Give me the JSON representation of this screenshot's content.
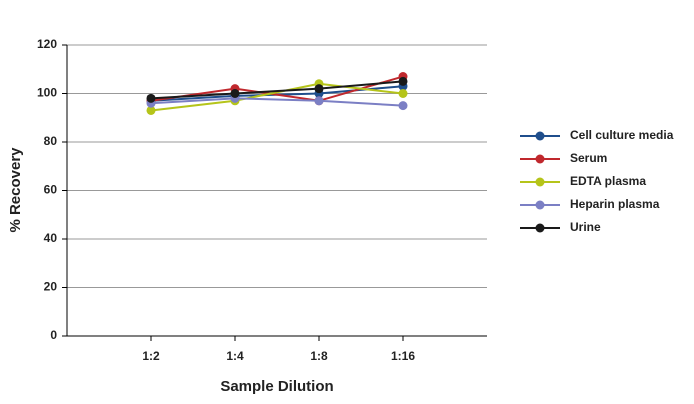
{
  "chart_data": {
    "type": "line",
    "x_label": "Sample Dilution",
    "y_label": "% Recovery",
    "categories": [
      "1:2",
      "1:4",
      "1:8",
      "1:16"
    ],
    "series": [
      {
        "name": "Cell culture media",
        "color": "#1f4e8c",
        "values": [
          97,
          99,
          100,
          103
        ]
      },
      {
        "name": "Serum",
        "color": "#c0282d",
        "values": [
          97,
          102,
          97,
          107
        ]
      },
      {
        "name": "EDTA plasma",
        "color": "#b5c41a",
        "values": [
          93,
          97,
          104,
          100
        ]
      },
      {
        "name": "Heparin plasma",
        "color": "#7b7fc4",
        "values": [
          96,
          98,
          97,
          95
        ]
      },
      {
        "name": "Urine",
        "color": "#1a1a1a",
        "values": [
          98,
          100,
          102,
          105
        ]
      }
    ],
    "ylim": [
      0,
      120
    ],
    "yticks": [
      0,
      20,
      40,
      60,
      80,
      100,
      120
    ],
    "grid": true,
    "legend": "right"
  }
}
